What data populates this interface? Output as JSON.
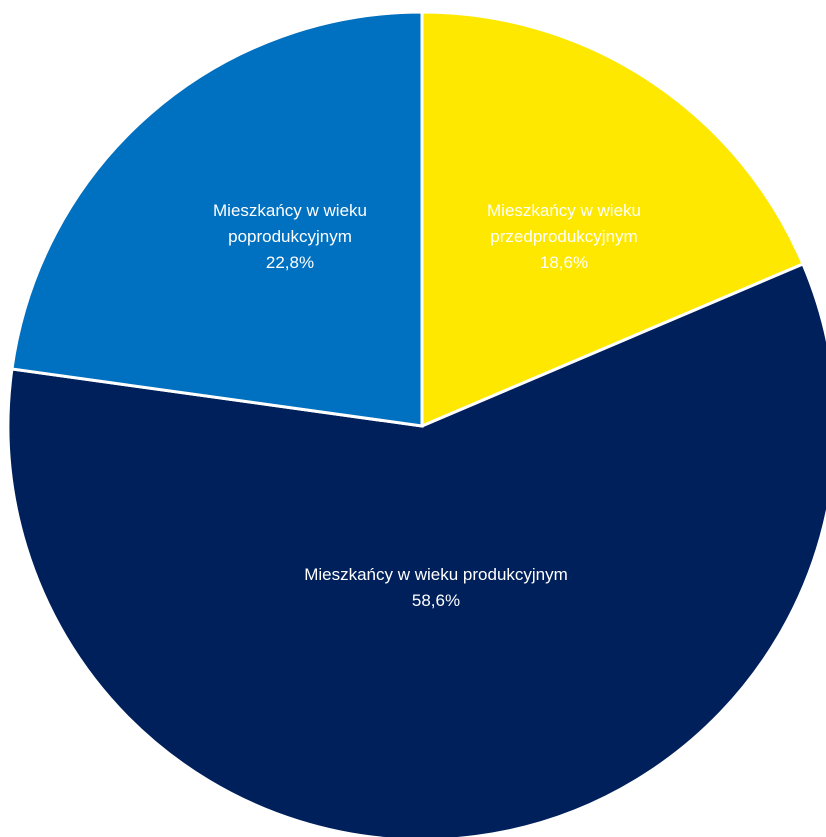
{
  "chart_data": {
    "type": "pie",
    "title": "",
    "start_angle_deg": 0,
    "direction": "clockwise",
    "slices": [
      {
        "label_lines": [
          "Mieszkańcy w wieku",
          "przedprodukcyjnym"
        ],
        "value": 18.6,
        "value_label": "18,6%",
        "color": "#FFE800"
      },
      {
        "label_lines": [
          "Mieszkańcy w wieku produkcyjnym"
        ],
        "value": 58.6,
        "value_label": "58,6%",
        "color": "#00205B"
      },
      {
        "label_lines": [
          "Mieszkańcy w wieku",
          "poprodukcyjnym"
        ],
        "value": 22.8,
        "value_label": "22,8%",
        "color": "#0070C0"
      }
    ],
    "legend": "none"
  }
}
